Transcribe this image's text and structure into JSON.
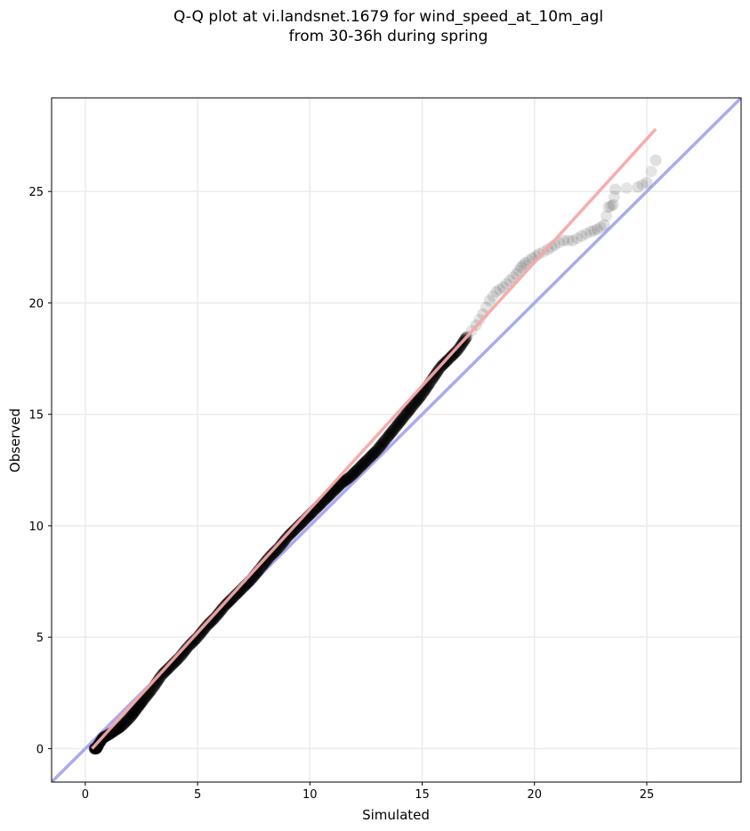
{
  "chart_data": {
    "type": "scatter",
    "title_line1": "Q-Q plot at vi.landsnet.1679 for wind_speed_at_10m_agl",
    "title_line2": "from 30-36h during spring",
    "xlabel": "Simulated",
    "ylabel": "Observed",
    "xlim": [
      -1.5,
      29.2
    ],
    "ylim": [
      -1.5,
      29.2
    ],
    "xticks": [
      0,
      5,
      10,
      15,
      20,
      25
    ],
    "yticks": [
      0,
      5,
      10,
      15,
      20,
      25
    ],
    "grid": true,
    "reference_line": {
      "name": "1:1",
      "color": "#aaaaf0",
      "x": [
        -1.5,
        29.2
      ],
      "y": [
        -1.5,
        29.2
      ]
    },
    "fit_line": {
      "name": "fit",
      "color": "#f7a8a8",
      "x": [
        0.3,
        25.4
      ],
      "y": [
        0.0,
        27.8
      ]
    },
    "point_color": "#000000",
    "series": [
      {
        "values": [
          [
            0.4,
            0.0
          ],
          [
            0.5,
            0.0
          ],
          [
            0.6,
            0.2
          ],
          [
            0.8,
            0.5
          ],
          [
            1.0,
            0.6
          ],
          [
            1.3,
            0.8
          ],
          [
            1.6,
            1.0
          ],
          [
            2.0,
            1.4
          ],
          [
            2.3,
            1.8
          ],
          [
            2.6,
            2.2
          ],
          [
            3.0,
            2.7
          ],
          [
            3.4,
            3.3
          ],
          [
            3.8,
            3.7
          ],
          [
            4.2,
            4.1
          ],
          [
            4.6,
            4.6
          ],
          [
            5.0,
            5.0
          ],
          [
            5.4,
            5.5
          ],
          [
            5.8,
            5.9
          ],
          [
            6.2,
            6.4
          ],
          [
            6.6,
            6.8
          ],
          [
            7.0,
            7.2
          ],
          [
            7.4,
            7.6
          ],
          [
            7.8,
            8.1
          ],
          [
            8.2,
            8.6
          ],
          [
            8.6,
            9.0
          ],
          [
            9.0,
            9.5
          ],
          [
            9.4,
            9.9
          ],
          [
            9.8,
            10.3
          ],
          [
            10.2,
            10.7
          ],
          [
            10.6,
            11.1
          ],
          [
            11.0,
            11.5
          ],
          [
            11.4,
            11.9
          ],
          [
            11.8,
            12.2
          ],
          [
            12.2,
            12.6
          ],
          [
            12.6,
            13.0
          ],
          [
            13.0,
            13.4
          ],
          [
            13.4,
            13.9
          ],
          [
            13.8,
            14.4
          ],
          [
            14.2,
            14.9
          ],
          [
            14.6,
            15.4
          ],
          [
            15.0,
            15.9
          ],
          [
            15.4,
            16.5
          ],
          [
            15.8,
            17.1
          ],
          [
            16.2,
            17.5
          ],
          [
            16.6,
            17.9
          ],
          [
            17.0,
            18.5
          ],
          [
            17.4,
            19.0
          ],
          [
            17.7,
            19.5
          ],
          [
            18.0,
            20.1
          ],
          [
            18.3,
            20.5
          ],
          [
            18.6,
            20.7
          ],
          [
            18.9,
            21.0
          ],
          [
            19.2,
            21.3
          ],
          [
            19.4,
            21.6
          ],
          [
            19.6,
            21.8
          ],
          [
            19.9,
            22.0
          ],
          [
            20.2,
            22.2
          ],
          [
            20.6,
            22.4
          ],
          [
            20.9,
            22.6
          ],
          [
            21.3,
            22.8
          ],
          [
            21.7,
            22.8
          ],
          [
            22.1,
            23.0
          ],
          [
            22.5,
            23.2
          ],
          [
            22.8,
            23.3
          ],
          [
            23.1,
            23.5
          ],
          [
            23.3,
            24.3
          ],
          [
            23.5,
            24.4
          ],
          [
            23.6,
            25.1
          ],
          [
            24.6,
            25.2
          ],
          [
            25.0,
            25.4
          ],
          [
            25.4,
            26.4
          ]
        ]
      }
    ]
  }
}
